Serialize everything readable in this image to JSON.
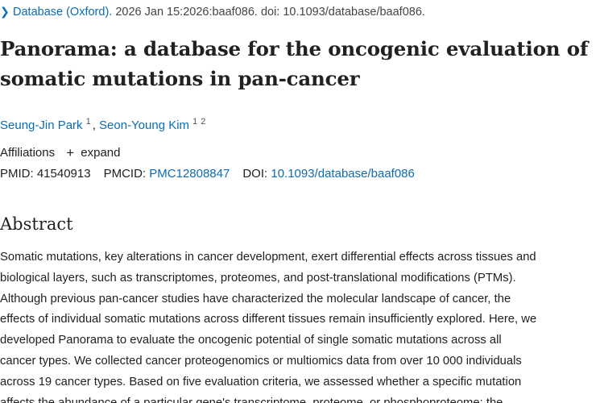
{
  "citation": {
    "journal": "Database (Oxford).",
    "details": " 2026 Jan 15:2026:baaf086. doi: 10.1093/database/baaf086."
  },
  "title": {
    "line1": "Panorama: a database for the oncogenic evaluation of",
    "line2": "somatic mutations in pan-cancer"
  },
  "authors": [
    {
      "name": "Seung-Jin Park",
      "sups": [
        "1"
      ]
    },
    {
      "name": "Seon-Young Kim",
      "sups": [
        "1",
        "2"
      ]
    }
  ],
  "affiliations": {
    "label": "Affiliations",
    "expand_label": "expand",
    "expand_icon": "plus-icon"
  },
  "identifiers": {
    "pmid_label": "PMID:",
    "pmid": "41540913",
    "pmcid_label": "PMCID:",
    "pmcid": "PMC12808847",
    "doi_label": "DOI:",
    "doi": "10.1093/database/baaf086"
  },
  "abstract": {
    "heading": "Abstract",
    "lines": [
      "Somatic mutations, key alterations in cancer development, exert differential effects across tissues and",
      "biological layers, such as transcriptomes, proteomes, and post-translational modifications (PTMs).",
      "Although previous pan-cancer studies have characterized the molecular landscape of cancer, the",
      "effects of individual somatic mutations across different tissues remain insufficiently explored. Here, we",
      "developed Panorama to evaluate the oncogenic potential of single somatic mutations across all",
      "cancer types. We collected cancer proteogenomics or multiomics data from over 10 000 individuals",
      "across 19 cancer types. Based on five evaluation criteria, we assessed whether a specific mutation",
      "affects the abundance of a particular gene's transcriptome, proteome, or phosphoproteome; the"
    ]
  },
  "colors": {
    "link": "#0b6cb5",
    "text": "#212121"
  }
}
